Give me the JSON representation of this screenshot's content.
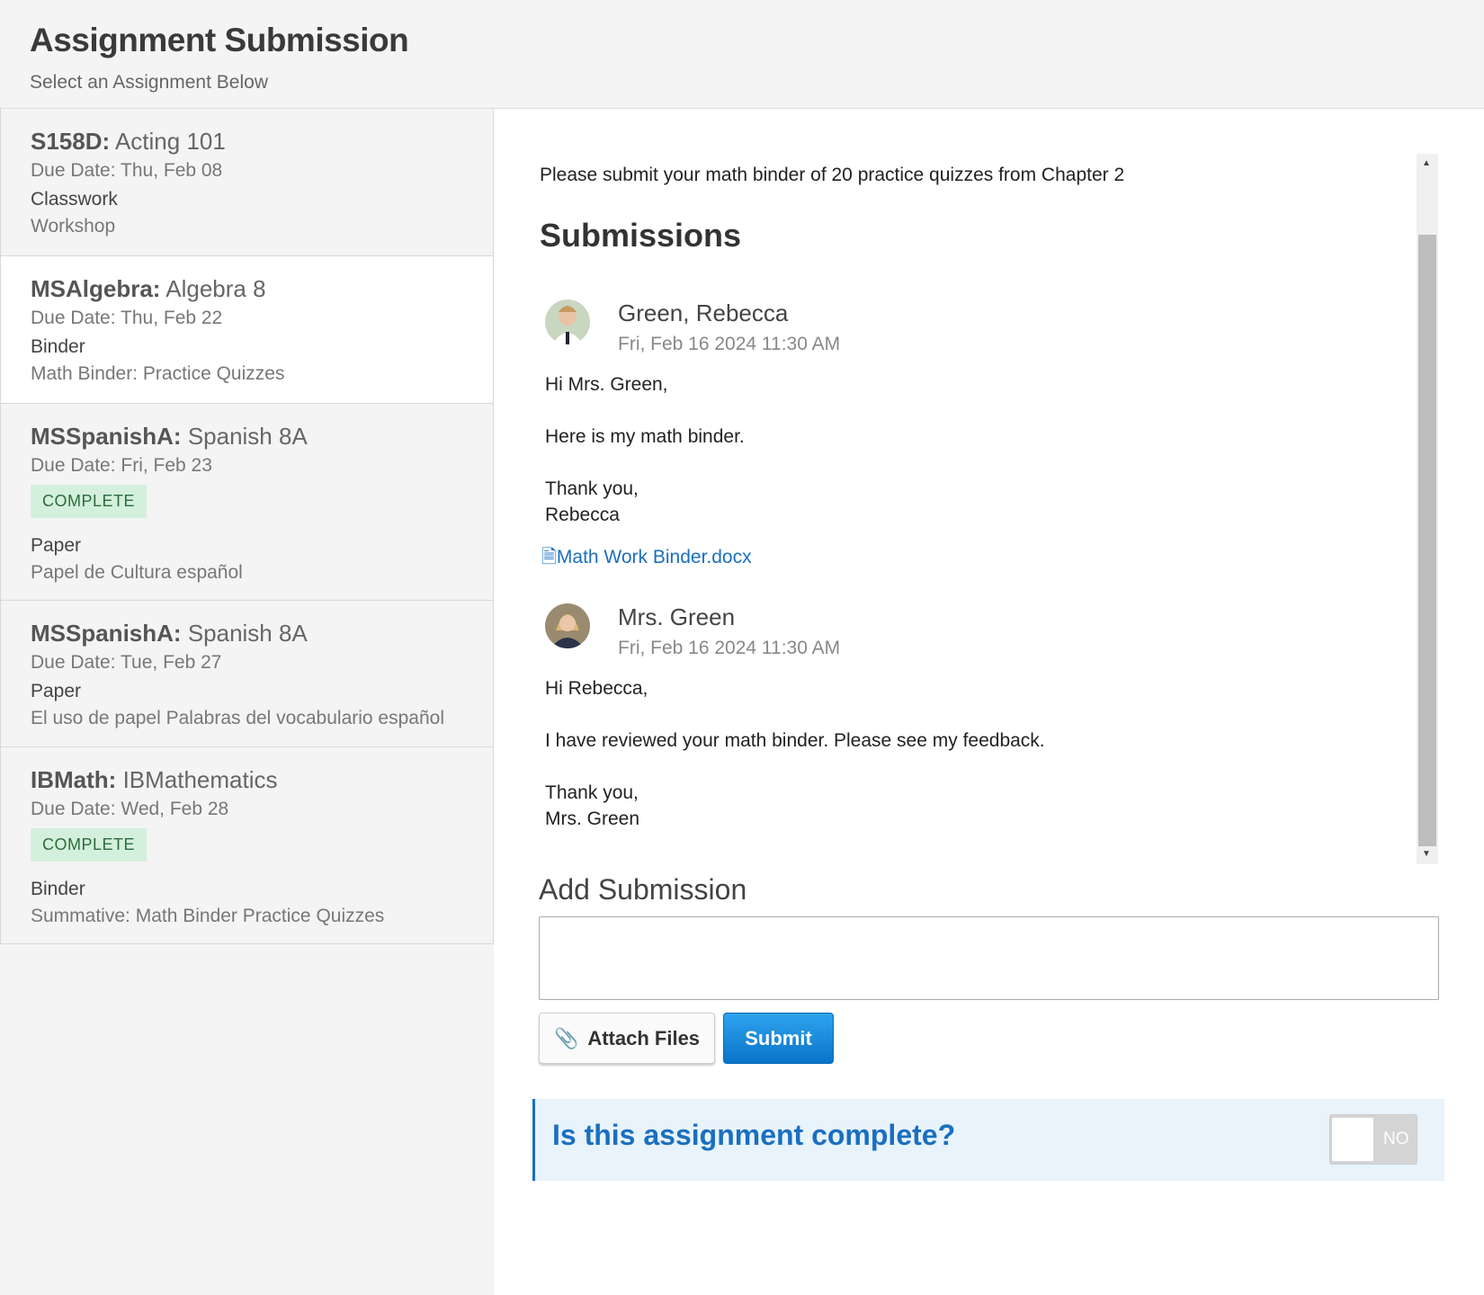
{
  "header": {
    "title": "Assignment Submission",
    "subtitle": "Select an Assignment Below"
  },
  "sidebar": {
    "items": [
      {
        "code": "S158D:",
        "course": "Acting 101",
        "due": "Due Date: Thu, Feb 08",
        "badge": null,
        "type": "Classwork",
        "desc": "Workshop"
      },
      {
        "code": "MSAlgebra:",
        "course": "Algebra 8",
        "due": "Due Date: Thu, Feb 22",
        "badge": null,
        "type": "Binder",
        "desc": "Math Binder: Practice Quizzes"
      },
      {
        "code": "MSSpanishA:",
        "course": "Spanish 8A",
        "due": "Due Date: Fri, Feb 23",
        "badge": "COMPLETE",
        "type": "Paper",
        "desc": "Papel de Cultura español"
      },
      {
        "code": "MSSpanishA:",
        "course": "Spanish 8A",
        "due": "Due Date: Tue, Feb 27",
        "badge": null,
        "type": "Paper",
        "desc": "El uso de papel Palabras del vocabulario español"
      },
      {
        "code": "IBMath:",
        "course": "IBMathematics",
        "due": "Due Date: Wed, Feb 28",
        "badge": "COMPLETE",
        "type": "Binder",
        "desc": "Summative: Math Binder Practice Quizzes"
      }
    ],
    "selected_index": 1
  },
  "main": {
    "instructions": "Please submit your math binder of 20 practice quizzes from Chapter 2",
    "submissions_heading": "Submissions",
    "messages": [
      {
        "name": "Green, Rebecca",
        "time": "Fri, Feb 16 2024 11:30 AM",
        "lines": [
          "Hi Mrs. Green,",
          "Here is my math binder.",
          "Thank you,",
          "Rebecca"
        ],
        "attachment": "Math Work Binder.docx"
      },
      {
        "name": "Mrs. Green",
        "time": "Fri, Feb 16 2024 11:30 AM",
        "lines": [
          "Hi Rebecca,",
          "I have reviewed your math binder. Please see my feedback.",
          "Thank you,",
          "Mrs. Green"
        ]
      }
    ],
    "add_heading": "Add Submission",
    "textarea_value": "",
    "attach_label": "Attach Files",
    "submit_label": "Submit",
    "complete_question": "Is this assignment complete?",
    "toggle_label": "NO",
    "toggle_on": false
  },
  "colors": {
    "accent": "#1a6fc0",
    "badge_bg": "#d3f0dc",
    "submit": "#0a74c8"
  }
}
